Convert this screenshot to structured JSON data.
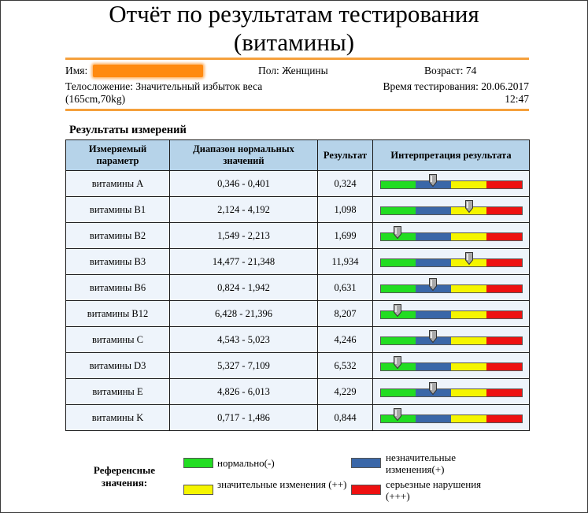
{
  "report": {
    "title_line1": "Отчёт по результатам тестирования",
    "title_line2": "(витамины)"
  },
  "patient": {
    "name_label": "Имя:",
    "sex_label": "Пол:",
    "sex_value": "Женщины",
    "age_label": "Возраст:",
    "age_value": "74",
    "build_label": "Телосложение:",
    "build_value": "Значительный избыток веса",
    "build_metrics": "(165cm,70kg)",
    "test_time_label": "Время тестирования:",
    "test_date": "20.06.2017",
    "test_clock": "12:47"
  },
  "results": {
    "heading": "Результаты измерений",
    "columns": {
      "param": "Измеряемый параметр",
      "range": "Диапазон нормальных значений",
      "result": "Результат",
      "interpretation": "Интерпретация результата"
    },
    "scale_colors": [
      "#22dd22",
      "#3a67a8",
      "#f5f500",
      "#ee1111"
    ],
    "rows": [
      {
        "param": "витамины A",
        "range": "0,346 - 0,401",
        "result": "0,324",
        "level": 0.375
      },
      {
        "param": "витамины B1",
        "range": "2,124 - 4,192",
        "result": "1,098",
        "level": 0.625
      },
      {
        "param": "витамины B2",
        "range": "1,549 - 2,213",
        "result": "1,699",
        "level": 0.125
      },
      {
        "param": "витамины B3",
        "range": "14,477 - 21,348",
        "result": "11,934",
        "level": 0.625
      },
      {
        "param": "витамины B6",
        "range": "0,824 - 1,942",
        "result": "0,631",
        "level": 0.375
      },
      {
        "param": "витамины B12",
        "range": "6,428 - 21,396",
        "result": "8,207",
        "level": 0.125
      },
      {
        "param": "витамины C",
        "range": "4,543 - 5,023",
        "result": "4,246",
        "level": 0.375
      },
      {
        "param": "витамины D3",
        "range": "5,327 - 7,109",
        "result": "6,532",
        "level": 0.125
      },
      {
        "param": "витамины E",
        "range": "4,826 - 6,013",
        "result": "4,229",
        "level": 0.375
      },
      {
        "param": "витамины K",
        "range": "0,717 - 1,486",
        "result": "0,844",
        "level": 0.125
      }
    ]
  },
  "legend": {
    "label": "Референсные значения:",
    "items": [
      {
        "text": "нормально(-)",
        "color": "#22dd22"
      },
      {
        "text": "незначительные изменения(+)",
        "color": "#3a67a8"
      },
      {
        "text": "значительные изменения (++)",
        "color": "#f5f500"
      },
      {
        "text": "серьезные нарушения (+++)",
        "color": "#ee1111"
      }
    ]
  }
}
